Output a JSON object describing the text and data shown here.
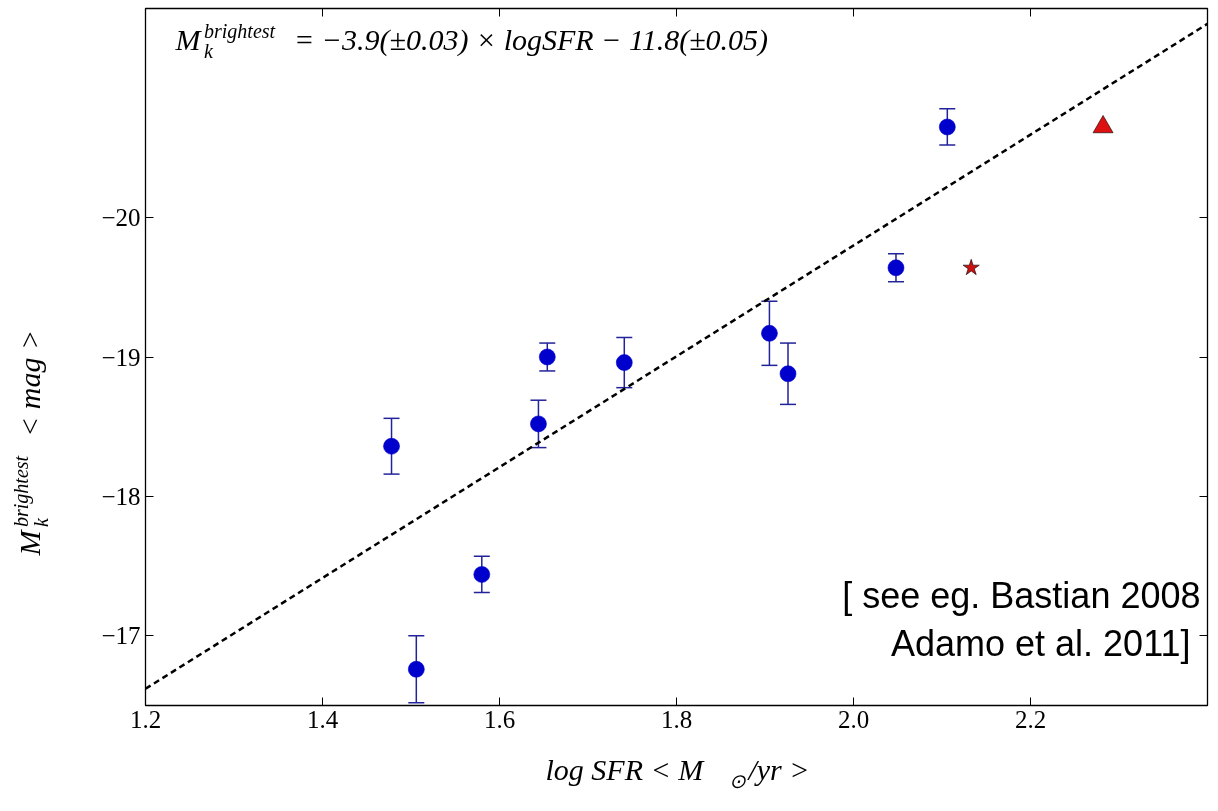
{
  "chart_data": {
    "type": "scatter",
    "xlabel": "log SFR < M$_{⊙}$/yr >",
    "ylabel": "M$_{k}$$^{brightest}$ < mag >",
    "annotations": [
      "M$_{k}$$^{brightest}$ = −3.9(±0.03) × logSFR − 11.8(±0.05)",
      "[ see eg. Bastian 2008\n Adamo et al. 2011]"
    ],
    "xlim": [
      1.2,
      2.4
    ],
    "ylim": [
      -16.5,
      -21.5
    ],
    "xticks": [
      {
        "value": 1.2,
        "label": "1.2"
      },
      {
        "value": 1.4,
        "label": "1.4"
      },
      {
        "value": 1.6,
        "label": "1.6"
      },
      {
        "value": 1.8,
        "label": "1.8"
      },
      {
        "value": 2.0,
        "label": "2.0"
      },
      {
        "value": 2.2,
        "label": "2.2"
      }
    ],
    "yticks": [
      {
        "value": -20,
        "label": "−20"
      },
      {
        "value": -19,
        "label": "−19"
      },
      {
        "value": -18,
        "label": "−18"
      },
      {
        "value": -17,
        "label": "−17"
      }
    ],
    "grid": false,
    "series": [
      {
        "type": "scatter",
        "marker": "circle",
        "color": "#0000cc",
        "x": [
          1.478,
          1.506,
          1.58,
          1.644,
          1.654,
          1.741,
          1.905,
          1.926,
          2.048,
          2.106
        ],
        "values": [
          -18.36,
          -16.76,
          -17.44,
          -18.52,
          -19.0,
          -18.96,
          -19.17,
          -18.88,
          -19.64,
          -20.65
        ],
        "errors": [
          0.2,
          0.24,
          0.13,
          0.17,
          0.1,
          0.18,
          0.23,
          0.22,
          0.1,
          0.13
        ]
      },
      {
        "type": "scatter",
        "marker": "star",
        "color": "#cc1111",
        "x": [
          2.133
        ],
        "values": [
          -19.64
        ]
      },
      {
        "type": "scatter",
        "marker": "triangle",
        "color": "#dd1111",
        "x": [
          2.282
        ],
        "values": [
          -20.65
        ]
      },
      {
        "type": "line",
        "marker": "none",
        "line_style": "dashed",
        "color": "#000000",
        "x": [
          1.2,
          2.4
        ],
        "values": [
          -16.62,
          -21.39
        ]
      }
    ]
  }
}
